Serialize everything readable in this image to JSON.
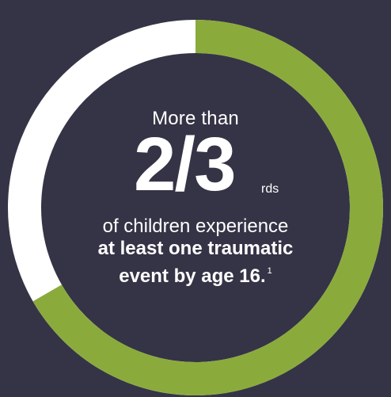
{
  "colors": {
    "background": "#353446",
    "highlight": "#8aab3c",
    "remainder": "#ffffff"
  },
  "chart_data": {
    "type": "pie",
    "variant": "donut",
    "title": "",
    "slices": [
      {
        "label": "children who experience at least one traumatic event by age 16",
        "value": 0.6667,
        "color": "#8aab3c"
      },
      {
        "label": "remainder",
        "value": 0.3333,
        "color": "#ffffff"
      }
    ]
  },
  "callout": {
    "intro": "More than",
    "figure": "2/3",
    "figure_suffix": "rds",
    "line_plain": "of children experience",
    "line_bold_1": "at least one traumatic",
    "line_bold_2": "event by age 16.",
    "footnote": "1"
  }
}
